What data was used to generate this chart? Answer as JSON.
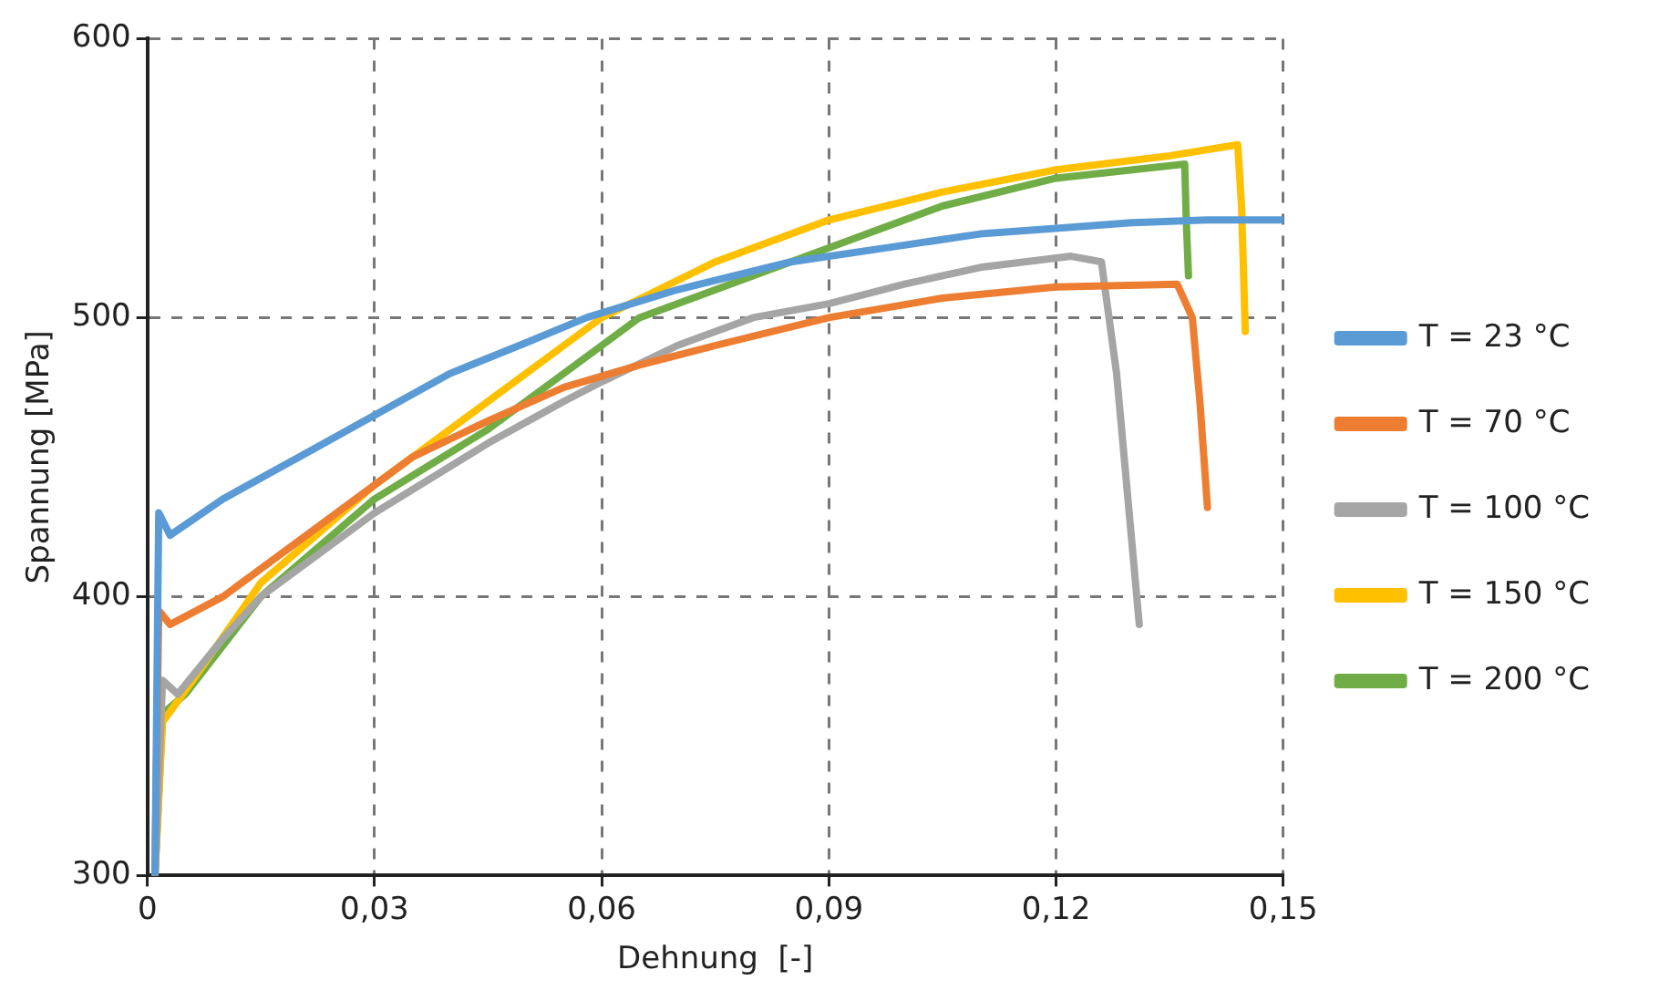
{
  "chart_data": {
    "type": "line",
    "xlabel": "Dehnung  [-]",
    "ylabel": "Spannung [MPa]",
    "xlim": [
      0,
      0.15
    ],
    "ylim": [
      300,
      600
    ],
    "xticks": [
      {
        "value": 0,
        "label": "0"
      },
      {
        "value": 0.03,
        "label": "0,03"
      },
      {
        "value": 0.06,
        "label": "0,06"
      },
      {
        "value": 0.09,
        "label": "0,09"
      },
      {
        "value": 0.12,
        "label": "0,12"
      },
      {
        "value": 0.15,
        "label": "0,15"
      }
    ],
    "yticks": [
      300,
      400,
      500,
      600
    ],
    "grid": true,
    "legend": "right",
    "marker": "none",
    "line_style": "solid",
    "series": [
      {
        "name": "T = 23 °C",
        "color": "#5b9bd5",
        "x": [
          0.001,
          0.0015,
          0.003,
          0.01,
          0.02,
          0.03,
          0.04,
          0.05,
          0.058,
          0.07,
          0.085,
          0.1,
          0.11,
          0.12,
          0.13,
          0.14,
          0.15
        ],
        "values": [
          300,
          430,
          422,
          435,
          450,
          465,
          480,
          491,
          500,
          510,
          520,
          526,
          530,
          532,
          534,
          535,
          535
        ]
      },
      {
        "name": "T = 70 °C",
        "color": "#ed7d31",
        "x": [
          0.001,
          0.0015,
          0.003,
          0.01,
          0.02,
          0.035,
          0.045,
          0.055,
          0.065,
          0.075,
          0.09,
          0.105,
          0.12,
          0.136,
          0.138,
          0.139,
          0.14
        ],
        "values": [
          300,
          395,
          390,
          400,
          420,
          450,
          463,
          475,
          483,
          490,
          500,
          507,
          511,
          512,
          500,
          470,
          432
        ]
      },
      {
        "name": "T = 100 °C",
        "color": "#a5a5a5",
        "x": [
          0.001,
          0.002,
          0.004,
          0.01,
          0.015,
          0.03,
          0.045,
          0.055,
          0.06,
          0.07,
          0.08,
          0.09,
          0.1,
          0.11,
          0.122,
          0.126,
          0.128,
          0.131
        ],
        "values": [
          300,
          370,
          365,
          385,
          400,
          430,
          455,
          470,
          477,
          490,
          500,
          505,
          512,
          518,
          522,
          520,
          480,
          390
        ]
      },
      {
        "name": "T = 150 °C",
        "color": "#ffc000",
        "x": [
          0.001,
          0.002,
          0.006,
          0.015,
          0.03,
          0.045,
          0.06,
          0.075,
          0.09,
          0.105,
          0.12,
          0.135,
          0.144,
          0.1445,
          0.145
        ],
        "values": [
          300,
          355,
          370,
          405,
          440,
          470,
          500,
          520,
          535,
          545,
          553,
          558,
          562,
          540,
          495
        ]
      },
      {
        "name": "T = 200 °C",
        "color": "#70ad47",
        "x": [
          0.001,
          0.002,
          0.005,
          0.015,
          0.03,
          0.045,
          0.055,
          0.065,
          0.08,
          0.095,
          0.105,
          0.12,
          0.137,
          0.1372,
          0.1375
        ],
        "values": [
          300,
          358,
          365,
          400,
          435,
          460,
          480,
          500,
          515,
          530,
          540,
          550,
          555,
          535,
          515
        ]
      }
    ]
  }
}
